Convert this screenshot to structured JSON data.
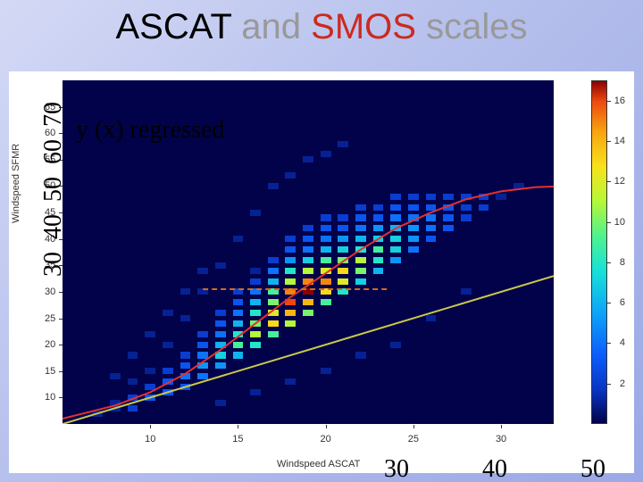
{
  "title": {
    "w1": "ASCAT",
    "w2": "and",
    "w3": "SMOS",
    "w4": "scales"
  },
  "annotation": "y (x) regressed",
  "axes": {
    "xlabel": "Windspeed ASCAT",
    "ylabel": "Windspeed SFMR",
    "xlim": [
      5,
      33
    ],
    "ylim": [
      5,
      70
    ],
    "xticks": [
      10,
      15,
      20,
      25,
      30
    ],
    "yticks": [
      10,
      15,
      20,
      25,
      30,
      35,
      40,
      45,
      50,
      55,
      60,
      65
    ]
  },
  "colorbar": {
    "ticks": [
      2,
      4,
      6,
      8,
      10,
      12,
      14,
      16
    ],
    "vmin": 0,
    "vmax": 17
  },
  "lines": {
    "identity": {
      "color": "#c9c94a",
      "pts": [
        [
          5,
          5
        ],
        [
          33,
          33
        ]
      ]
    },
    "regressed": {
      "color": "#e33131",
      "pts": [
        [
          5,
          6
        ],
        [
          8,
          8.5
        ],
        [
          10,
          11
        ],
        [
          12,
          14.5
        ],
        [
          14,
          19
        ],
        [
          16,
          24
        ],
        [
          18,
          29
        ],
        [
          20,
          33.5
        ],
        [
          22,
          38
        ],
        [
          24,
          42
        ],
        [
          26,
          45
        ],
        [
          28,
          47.5
        ],
        [
          30,
          49
        ],
        [
          32,
          49.8
        ],
        [
          33,
          49.9
        ]
      ]
    },
    "dashed": {
      "color": "#d46a17",
      "pts": [
        [
          13,
          30.5
        ],
        [
          23.5,
          30.5
        ]
      ],
      "dash": "6,4"
    }
  },
  "heat": {
    "cell_w": 0.6,
    "cell_h": 1.2,
    "palette_stops": [
      [
        0,
        "#02024a"
      ],
      [
        0.1,
        "#0836c6"
      ],
      [
        0.2,
        "#0b5efc"
      ],
      [
        0.32,
        "#0da3f9"
      ],
      [
        0.45,
        "#17e3d6"
      ],
      [
        0.55,
        "#52f28c"
      ],
      [
        0.65,
        "#b6f836"
      ],
      [
        0.75,
        "#f8e21c"
      ],
      [
        0.85,
        "#f8a60f"
      ],
      [
        0.94,
        "#ee4a10"
      ],
      [
        1.0,
        "#8a0101"
      ]
    ],
    "points": [
      [
        7,
        7,
        1
      ],
      [
        8,
        8,
        1
      ],
      [
        8,
        9,
        1
      ],
      [
        9,
        8,
        2
      ],
      [
        9,
        10,
        2
      ],
      [
        10,
        10,
        3
      ],
      [
        10,
        12,
        2
      ],
      [
        11,
        11,
        3
      ],
      [
        11,
        13,
        3
      ],
      [
        11,
        15,
        2
      ],
      [
        12,
        12,
        3
      ],
      [
        12,
        14,
        4
      ],
      [
        12,
        16,
        3
      ],
      [
        12,
        18,
        2
      ],
      [
        13,
        14,
        4
      ],
      [
        13,
        16,
        5
      ],
      [
        13,
        18,
        4
      ],
      [
        13,
        20,
        3
      ],
      [
        13,
        22,
        2
      ],
      [
        14,
        16,
        5
      ],
      [
        14,
        18,
        7
      ],
      [
        14,
        20,
        6
      ],
      [
        14,
        22,
        4
      ],
      [
        14,
        24,
        3
      ],
      [
        14,
        26,
        2
      ],
      [
        15,
        18,
        6
      ],
      [
        15,
        20,
        9
      ],
      [
        15,
        22,
        8
      ],
      [
        15,
        24,
        6
      ],
      [
        15,
        26,
        4
      ],
      [
        15,
        28,
        3
      ],
      [
        15,
        30,
        2
      ],
      [
        16,
        20,
        8
      ],
      [
        16,
        22,
        11
      ],
      [
        16,
        24,
        10
      ],
      [
        16,
        26,
        8
      ],
      [
        16,
        28,
        6
      ],
      [
        16,
        30,
        4
      ],
      [
        16,
        32,
        2
      ],
      [
        16,
        34,
        1
      ],
      [
        17,
        22,
        9
      ],
      [
        17,
        24,
        13
      ],
      [
        17,
        26,
        12
      ],
      [
        17,
        28,
        10
      ],
      [
        17,
        30,
        9
      ],
      [
        17,
        32,
        6
      ],
      [
        17,
        34,
        4
      ],
      [
        17,
        36,
        2
      ],
      [
        18,
        24,
        11
      ],
      [
        18,
        26,
        14
      ],
      [
        18,
        28,
        16
      ],
      [
        18,
        30,
        15
      ],
      [
        18,
        32,
        11
      ],
      [
        18,
        34,
        8
      ],
      [
        18,
        36,
        5
      ],
      [
        18,
        38,
        3
      ],
      [
        18,
        40,
        2
      ],
      [
        19,
        26,
        10
      ],
      [
        19,
        28,
        14
      ],
      [
        19,
        30,
        17
      ],
      [
        19,
        32,
        15
      ],
      [
        19,
        34,
        11
      ],
      [
        19,
        36,
        7
      ],
      [
        19,
        38,
        4
      ],
      [
        19,
        40,
        3
      ],
      [
        19,
        42,
        2
      ],
      [
        20,
        28,
        9
      ],
      [
        20,
        30,
        13
      ],
      [
        20,
        32,
        15
      ],
      [
        20,
        34,
        12
      ],
      [
        20,
        36,
        9
      ],
      [
        20,
        38,
        6
      ],
      [
        20,
        40,
        4
      ],
      [
        20,
        42,
        3
      ],
      [
        20,
        44,
        2
      ],
      [
        21,
        30,
        8
      ],
      [
        21,
        32,
        12
      ],
      [
        21,
        34,
        13
      ],
      [
        21,
        36,
        10
      ],
      [
        21,
        38,
        7
      ],
      [
        21,
        40,
        5
      ],
      [
        21,
        42,
        3
      ],
      [
        21,
        44,
        2
      ],
      [
        22,
        32,
        7
      ],
      [
        22,
        34,
        10
      ],
      [
        22,
        36,
        11
      ],
      [
        22,
        38,
        8
      ],
      [
        22,
        40,
        6
      ],
      [
        22,
        42,
        4
      ],
      [
        22,
        44,
        3
      ],
      [
        22,
        46,
        2
      ],
      [
        23,
        34,
        6
      ],
      [
        23,
        36,
        8
      ],
      [
        23,
        38,
        9
      ],
      [
        23,
        40,
        7
      ],
      [
        23,
        42,
        5
      ],
      [
        23,
        44,
        3
      ],
      [
        23,
        46,
        2
      ],
      [
        24,
        36,
        5
      ],
      [
        24,
        38,
        7
      ],
      [
        24,
        40,
        7
      ],
      [
        24,
        42,
        6
      ],
      [
        24,
        44,
        4
      ],
      [
        24,
        46,
        3
      ],
      [
        24,
        48,
        2
      ],
      [
        25,
        38,
        4
      ],
      [
        25,
        40,
        5
      ],
      [
        25,
        42,
        5
      ],
      [
        25,
        44,
        4
      ],
      [
        25,
        46,
        3
      ],
      [
        25,
        48,
        2
      ],
      [
        26,
        40,
        3
      ],
      [
        26,
        42,
        4
      ],
      [
        26,
        44,
        4
      ],
      [
        26,
        46,
        3
      ],
      [
        26,
        48,
        2
      ],
      [
        27,
        42,
        3
      ],
      [
        27,
        44,
        3
      ],
      [
        27,
        46,
        3
      ],
      [
        27,
        48,
        2
      ],
      [
        28,
        44,
        2
      ],
      [
        28,
        46,
        2
      ],
      [
        28,
        48,
        2
      ],
      [
        29,
        46,
        2
      ],
      [
        29,
        48,
        2
      ],
      [
        30,
        48,
        1
      ],
      [
        31,
        50,
        1
      ],
      [
        9,
        13,
        1
      ],
      [
        10,
        15,
        1
      ],
      [
        11,
        20,
        1
      ],
      [
        12,
        25,
        1
      ],
      [
        13,
        30,
        1
      ],
      [
        14,
        35,
        1
      ],
      [
        15,
        40,
        1
      ],
      [
        16,
        45,
        1
      ],
      [
        17,
        50,
        1
      ],
      [
        18,
        52,
        1
      ],
      [
        19,
        55,
        1
      ],
      [
        20,
        56,
        1
      ],
      [
        21,
        58,
        1
      ],
      [
        14,
        9,
        1
      ],
      [
        16,
        11,
        1
      ],
      [
        18,
        13,
        1
      ],
      [
        20,
        15,
        1
      ],
      [
        22,
        18,
        1
      ],
      [
        24,
        20,
        1
      ],
      [
        26,
        25,
        1
      ],
      [
        28,
        30,
        1
      ],
      [
        8,
        14,
        1
      ],
      [
        9,
        18,
        1
      ],
      [
        10,
        22,
        1
      ],
      [
        11,
        26,
        1
      ],
      [
        12,
        30,
        1
      ],
      [
        13,
        34,
        1
      ]
    ]
  },
  "overlay_big_y": [
    "30",
    "40",
    "50",
    "60",
    "70"
  ],
  "overlay_big_x": [
    "30",
    "40",
    "50"
  ],
  "styling": {
    "slide_bg_gradient": [
      "#d4d9f5",
      "#b8c2ed",
      "#9aa8e5"
    ],
    "plot_bg": "#02024a",
    "panel_bg": "#ffffff",
    "title_fontsize": 40,
    "annotation_fontsize": 28,
    "tick_fontsize": 11,
    "big_overlay_fontsize": 28
  }
}
